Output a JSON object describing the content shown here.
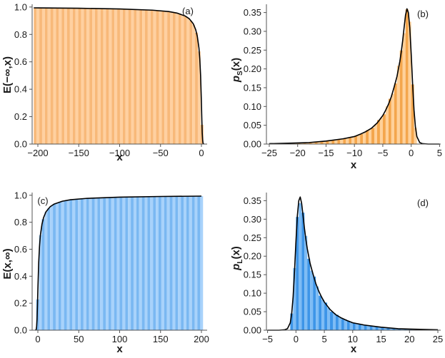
{
  "chart_data": [
    {
      "id": "a",
      "type": "area",
      "panel_label": "(a)",
      "xlabel": "x",
      "ylabel": "E(−∞,x)",
      "xlim": [
        -207,
        7
      ],
      "ylim": [
        0,
        1.02
      ],
      "xticks": [
        -200,
        -150,
        -100,
        -50,
        0
      ],
      "yticks": [
        0.0,
        0.2,
        0.4,
        0.6,
        0.8,
        1.0
      ],
      "ytick_decimals": 1,
      "fill_color": "#f8b979",
      "fill_stripe": "#ffd0a0",
      "line_color": "#000000",
      "hist_x": [
        -205,
        2,
        3.4
      ],
      "curve": {
        "x": [
          -205,
          -200,
          -150,
          -100,
          -60,
          -40,
          -30,
          -20,
          -15,
          -10,
          -7,
          -5,
          -3,
          -2,
          -1,
          0,
          0.5,
          1,
          1.5,
          2,
          3
        ],
        "y": [
          0.994,
          0.9935,
          0.991,
          0.986,
          0.977,
          0.967,
          0.956,
          0.935,
          0.915,
          0.878,
          0.835,
          0.785,
          0.7,
          0.62,
          0.5,
          0.3,
          0.18,
          0.08,
          0.03,
          0.005,
          0.0
        ]
      }
    },
    {
      "id": "b",
      "type": "bar",
      "panel_label": "(b)",
      "xlabel": "x",
      "ylabel_main": "p",
      "ylabel_sub": "S",
      "ylabel_tail": "(x)",
      "xlim": [
        -25.5,
        5.2
      ],
      "ylim": [
        0,
        0.372
      ],
      "xticks": [
        -25,
        -20,
        -15,
        -10,
        -5,
        0,
        5
      ],
      "yticks": [
        0.0,
        0.05,
        0.1,
        0.15,
        0.2,
        0.25,
        0.3,
        0.35
      ],
      "ytick_decimals": 2,
      "fill_color": "#f4a64c",
      "fill_stripe": "#ffd19a",
      "line_color": "#000000",
      "hist_x": [
        -25,
        1,
        0.5
      ],
      "curve": {
        "x": [
          -25,
          -20,
          -18,
          -15,
          -12,
          -10,
          -9,
          -8,
          -7,
          -6,
          -5,
          -4.5,
          -4,
          -3.5,
          -3,
          -2.5,
          -2,
          -1.75,
          -1.5,
          -1.25,
          -1,
          -0.75,
          -0.5,
          -0.25,
          0,
          0.25,
          0.5,
          0.75,
          1,
          1.5,
          2,
          3,
          5
        ],
        "y": [
          0.001,
          0.003,
          0.004,
          0.008,
          0.014,
          0.02,
          0.026,
          0.033,
          0.042,
          0.056,
          0.076,
          0.09,
          0.106,
          0.126,
          0.152,
          0.18,
          0.22,
          0.245,
          0.275,
          0.31,
          0.343,
          0.36,
          0.35,
          0.31,
          0.24,
          0.16,
          0.09,
          0.045,
          0.02,
          0.004,
          0.001,
          0.0,
          0.0
        ]
      }
    },
    {
      "id": "c",
      "type": "area",
      "panel_label": "(c)",
      "xlabel": "x",
      "ylabel": "E(x,∞)",
      "xlim": [
        -7,
        207
      ],
      "ylim": [
        0,
        1.02
      ],
      "xticks": [
        0,
        50,
        100,
        150,
        200
      ],
      "yticks": [
        0.0,
        0.2,
        0.4,
        0.6,
        0.8,
        1.0
      ],
      "ytick_decimals": 1,
      "fill_color": "#7ab8f2",
      "fill_stripe": "#a8d2fb",
      "line_color": "#000000",
      "hist_x": [
        -2,
        200,
        3.4
      ],
      "curve": {
        "x": [
          -3,
          -2,
          -1.5,
          -1,
          -0.5,
          0,
          1,
          2,
          3,
          5,
          7,
          10,
          15,
          20,
          30,
          40,
          60,
          100,
          150,
          200
        ],
        "y": [
          0.0,
          0.005,
          0.03,
          0.08,
          0.18,
          0.3,
          0.5,
          0.62,
          0.7,
          0.785,
          0.835,
          0.878,
          0.915,
          0.935,
          0.956,
          0.967,
          0.977,
          0.986,
          0.991,
          0.9935
        ]
      }
    },
    {
      "id": "d",
      "type": "bar",
      "panel_label": "(d)",
      "xlabel": "x",
      "ylabel_main": "p",
      "ylabel_sub": "L",
      "ylabel_tail": "(x)",
      "xlim": [
        -5.2,
        25.5
      ],
      "ylim": [
        0,
        0.372
      ],
      "xticks": [
        -5,
        0,
        5,
        10,
        15,
        20,
        25
      ],
      "yticks": [
        0.0,
        0.05,
        0.1,
        0.15,
        0.2,
        0.25,
        0.3,
        0.35
      ],
      "ytick_decimals": 2,
      "fill_color": "#3d95e8",
      "fill_stripe": "#7ebcf5",
      "line_color": "#000000",
      "hist_x": [
        -1,
        25,
        0.5
      ],
      "curve": {
        "x": [
          -5,
          -3,
          -2,
          -1.5,
          -1,
          -0.75,
          -0.5,
          -0.25,
          0,
          0.25,
          0.5,
          0.75,
          1,
          1.25,
          1.5,
          1.75,
          2,
          2.5,
          3,
          3.5,
          4,
          4.5,
          5,
          6,
          7,
          8,
          9,
          10,
          12,
          15,
          18,
          20,
          25
        ],
        "y": [
          0.0,
          0.0,
          0.001,
          0.004,
          0.02,
          0.045,
          0.09,
          0.16,
          0.24,
          0.31,
          0.35,
          0.36,
          0.343,
          0.31,
          0.275,
          0.245,
          0.22,
          0.18,
          0.152,
          0.126,
          0.106,
          0.09,
          0.076,
          0.056,
          0.042,
          0.033,
          0.026,
          0.02,
          0.014,
          0.008,
          0.004,
          0.003,
          0.001
        ]
      }
    }
  ]
}
